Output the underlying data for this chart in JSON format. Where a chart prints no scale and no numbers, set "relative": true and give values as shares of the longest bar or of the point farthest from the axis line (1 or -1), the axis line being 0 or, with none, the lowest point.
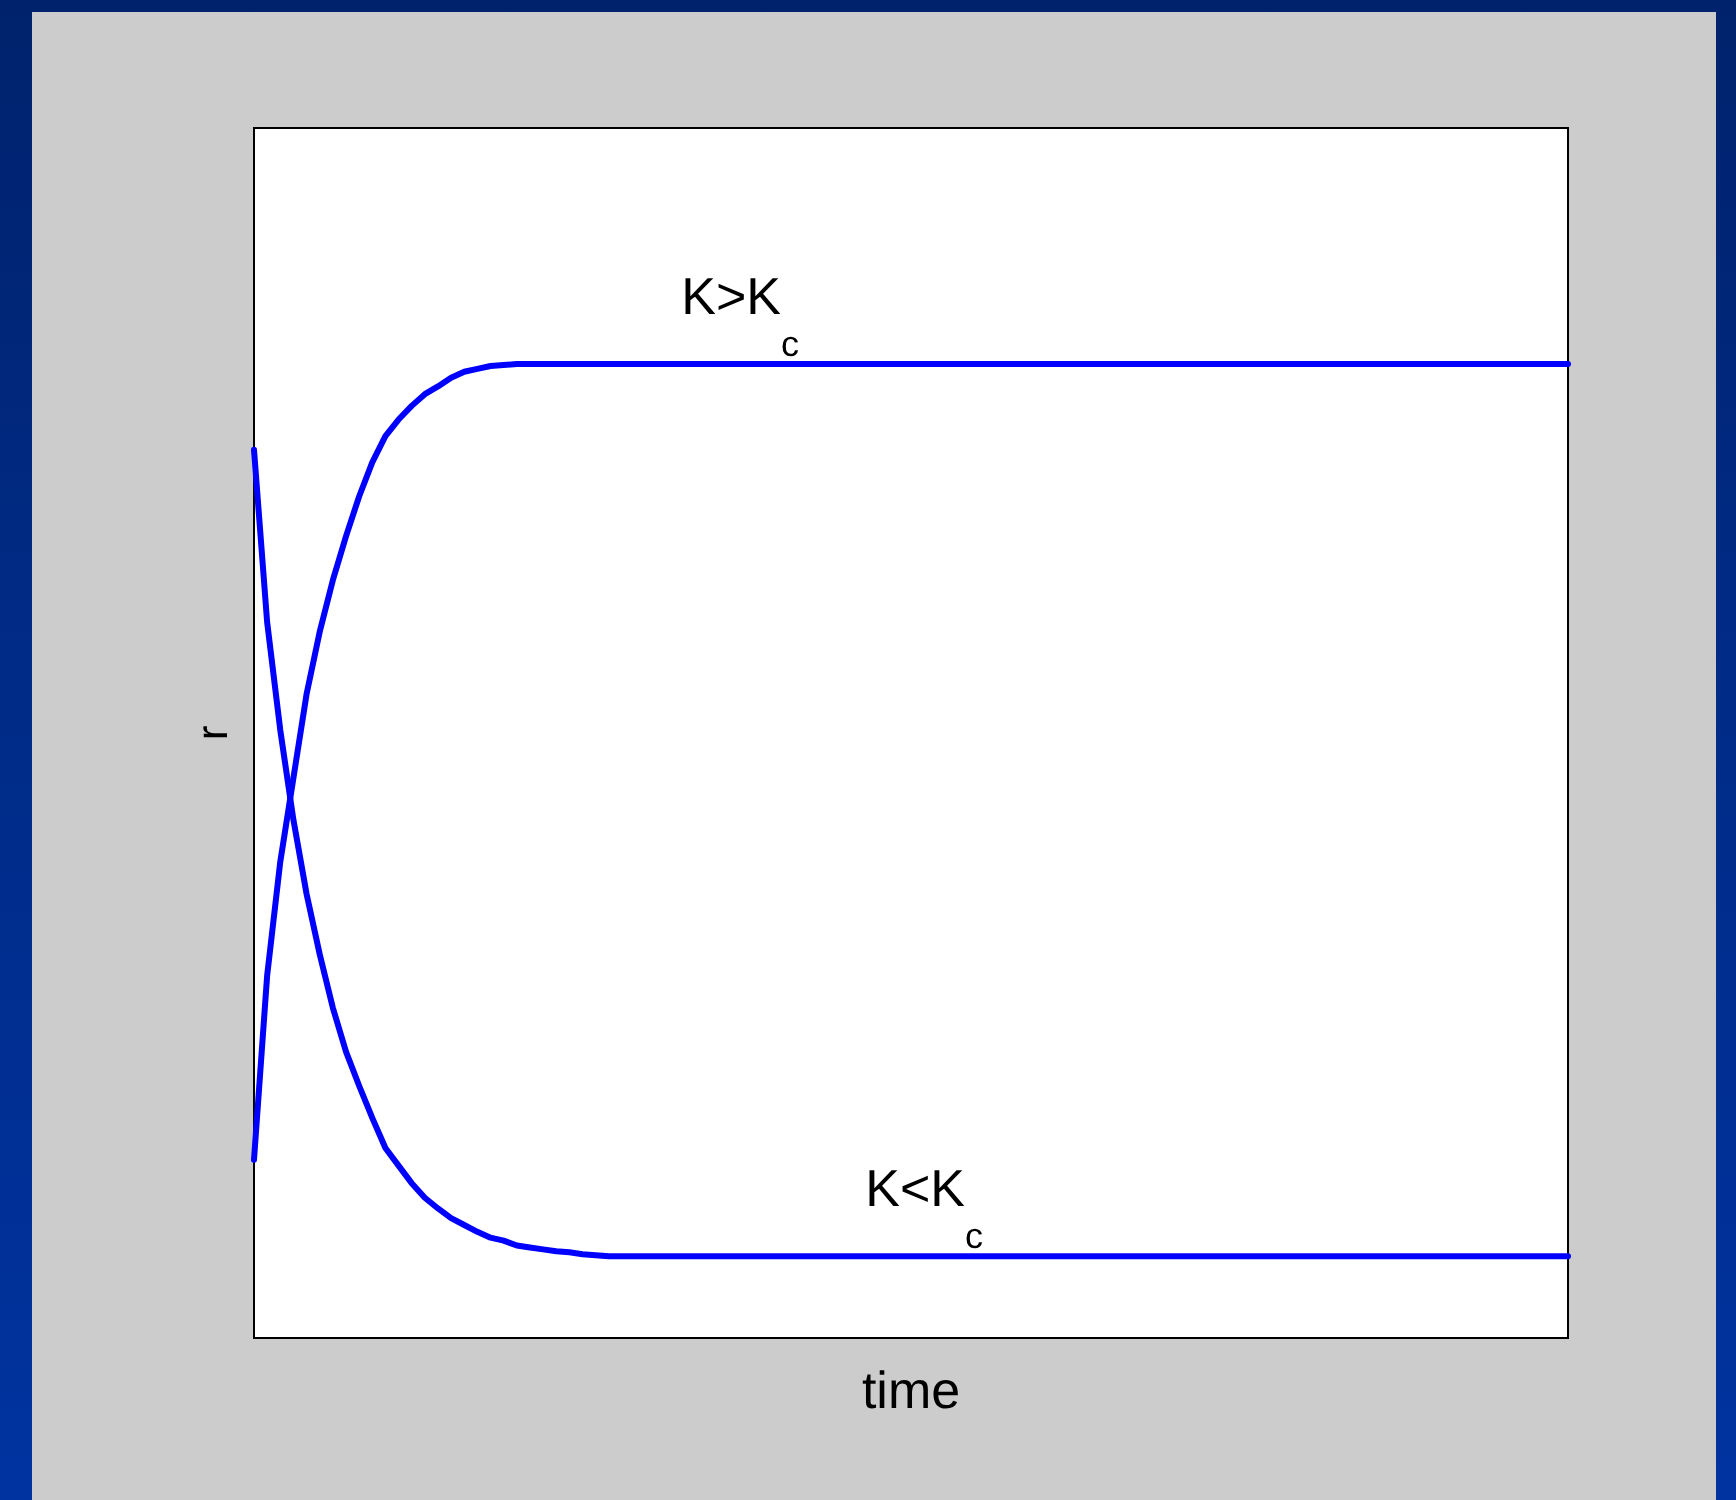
{
  "chart_data": {
    "type": "line",
    "relative": true,
    "xlabel": "time",
    "ylabel": "r",
    "categories": [
      null,
      null,
      null,
      null,
      null,
      null,
      null,
      null,
      null,
      null,
      null,
      null,
      null,
      null,
      null,
      null,
      null,
      null,
      null,
      null,
      null,
      null,
      null,
      null,
      null,
      null,
      null,
      null,
      null,
      null,
      null,
      null,
      null,
      null,
      null,
      null,
      null,
      null,
      null,
      null,
      null,
      null,
      null,
      null,
      null,
      null,
      null,
      null,
      null,
      null,
      null,
      null,
      null,
      null,
      null,
      null,
      null,
      null,
      null,
      null,
      null,
      null,
      null,
      null,
      null,
      null,
      null,
      null,
      null,
      null,
      null,
      null,
      null,
      null,
      null,
      null,
      null,
      null,
      null,
      null,
      null,
      null,
      null,
      null,
      null,
      null,
      null,
      null,
      null,
      null,
      null,
      null,
      null,
      null,
      null,
      null,
      null,
      null,
      null,
      null,
      null
    ],
    "series": [
      {
        "name": "K>K$_{c}$",
        "color": "#0000ff",
        "values": [
          0.183,
          0.372,
          0.489,
          0.575,
          0.661,
          0.725,
          0.778,
          0.823,
          0.864,
          0.899,
          0.926,
          0.943,
          0.957,
          0.969,
          0.977,
          0.986,
          0.992,
          0.995,
          0.998,
          0.999,
          1,
          1,
          1,
          1,
          1,
          1,
          1,
          1,
          1,
          1,
          1,
          1,
          1,
          1,
          1,
          1,
          1,
          1,
          1,
          1,
          1,
          1,
          1,
          1,
          1,
          1,
          1,
          1,
          1,
          1,
          1,
          1,
          1,
          1,
          1,
          1,
          1,
          1,
          1,
          1,
          1,
          1,
          1,
          1,
          1,
          1,
          1,
          1,
          1,
          1,
          1,
          1,
          1,
          1,
          1,
          1,
          1,
          1,
          1,
          1,
          1,
          1,
          1,
          1,
          1,
          1,
          1,
          1,
          1,
          1,
          1,
          1,
          1,
          1,
          1,
          1,
          1,
          1,
          1,
          1,
          1
        ]
      },
      {
        "name": "K<K$_{c}$",
        "color": "#0000ff",
        "values": [
          0.912,
          0.735,
          0.624,
          0.532,
          0.456,
          0.394,
          0.339,
          0.294,
          0.259,
          0.226,
          0.195,
          0.177,
          0.159,
          0.144,
          0.133,
          0.123,
          0.116,
          0.109,
          0.103,
          0.1,
          0.095,
          0.093,
          0.091,
          0.089,
          0.088,
          0.086,
          0.085,
          0.084,
          0.084,
          0.084,
          0.084,
          0.084,
          0.084,
          0.084,
          0.084,
          0.084,
          0.084,
          0.084,
          0.084,
          0.084,
          0.084,
          0.084,
          0.084,
          0.084,
          0.084,
          0.084,
          0.084,
          0.084,
          0.084,
          0.084,
          0.084,
          0.084,
          0.084,
          0.084,
          0.084,
          0.084,
          0.084,
          0.084,
          0.084,
          0.084,
          0.084,
          0.084,
          0.084,
          0.084,
          0.084,
          0.084,
          0.084,
          0.084,
          0.084,
          0.084,
          0.084,
          0.084,
          0.084,
          0.084,
          0.084,
          0.084,
          0.084,
          0.084,
          0.084,
          0.084,
          0.084,
          0.084,
          0.084,
          0.084,
          0.084,
          0.084,
          0.084,
          0.084,
          0.084,
          0.084,
          0.084,
          0.084,
          0.084,
          0.084,
          0.084,
          0.084,
          0.084,
          0.084,
          0.084,
          0.084,
          0.084
        ]
      }
    ]
  }
}
